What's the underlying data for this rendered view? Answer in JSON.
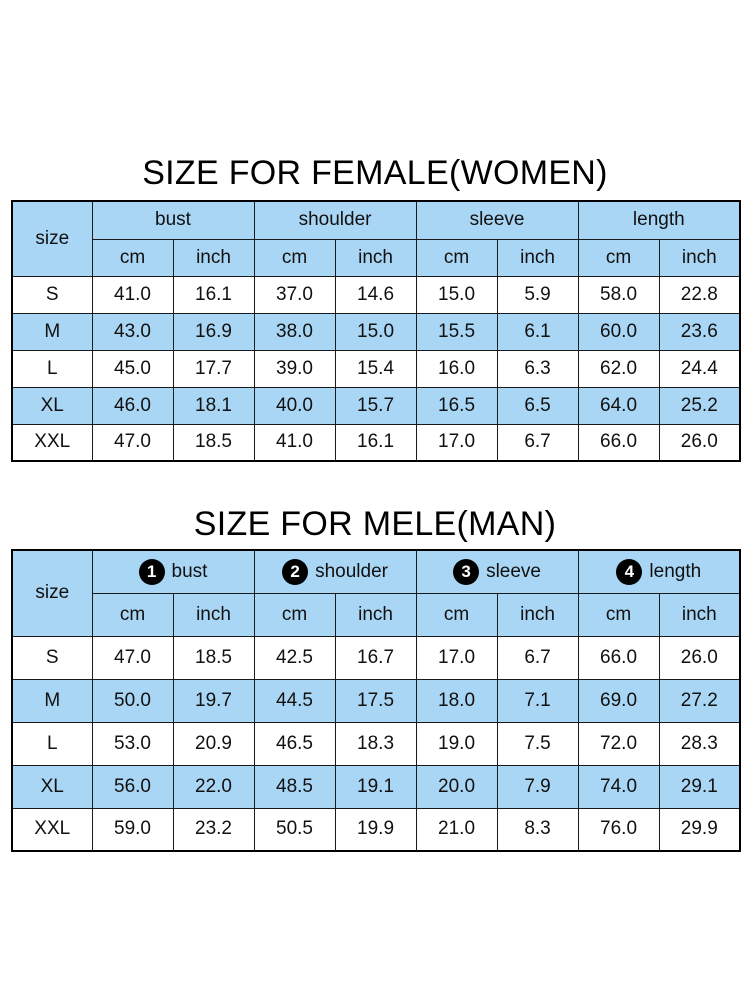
{
  "women": {
    "title": "SIZE FOR FEMALE(WOMEN)",
    "size_label": "size",
    "groups": [
      {
        "label": "bust"
      },
      {
        "label": "shoulder"
      },
      {
        "label": "sleeve"
      },
      {
        "label": "length"
      }
    ],
    "unit_cm": "cm",
    "unit_inch": "inch",
    "rows": [
      {
        "size": "S",
        "values": [
          "41.0",
          "16.1",
          "37.0",
          "14.6",
          "15.0",
          "5.9",
          "58.0",
          "22.8"
        ]
      },
      {
        "size": "M",
        "values": [
          "43.0",
          "16.9",
          "38.0",
          "15.0",
          "15.5",
          "6.1",
          "60.0",
          "23.6"
        ]
      },
      {
        "size": "L",
        "values": [
          "45.0",
          "17.7",
          "39.0",
          "15.4",
          "16.0",
          "6.3",
          "62.0",
          "24.4"
        ]
      },
      {
        "size": "XL",
        "values": [
          "46.0",
          "18.1",
          "40.0",
          "15.7",
          "16.5",
          "6.5",
          "64.0",
          "25.2"
        ]
      },
      {
        "size": "XXL",
        "values": [
          "47.0",
          "18.5",
          "41.0",
          "16.1",
          "17.0",
          "6.7",
          "66.0",
          "26.0"
        ]
      }
    ]
  },
  "men": {
    "title": "SIZE FOR MELE(MAN)",
    "size_label": "size",
    "groups": [
      {
        "badge": "1",
        "label": "bust"
      },
      {
        "badge": "2",
        "label": "shoulder"
      },
      {
        "badge": "3",
        "label": "sleeve"
      },
      {
        "badge": "4",
        "label": "length"
      }
    ],
    "unit_cm": "cm",
    "unit_inch": "inch",
    "rows": [
      {
        "size": "S",
        "values": [
          "47.0",
          "18.5",
          "42.5",
          "16.7",
          "17.0",
          "6.7",
          "66.0",
          "26.0"
        ]
      },
      {
        "size": "M",
        "values": [
          "50.0",
          "19.7",
          "44.5",
          "17.5",
          "18.0",
          "7.1",
          "69.0",
          "27.2"
        ]
      },
      {
        "size": "L",
        "values": [
          "53.0",
          "20.9",
          "46.5",
          "18.3",
          "19.0",
          "7.5",
          "72.0",
          "28.3"
        ]
      },
      {
        "size": "XL",
        "values": [
          "56.0",
          "22.0",
          "48.5",
          "19.1",
          "20.0",
          "7.9",
          "74.0",
          "29.1"
        ]
      },
      {
        "size": "XXL",
        "values": [
          "59.0",
          "23.2",
          "50.5",
          "19.9",
          "21.0",
          "8.3",
          "76.0",
          "29.9"
        ]
      }
    ]
  },
  "colors": {
    "header_blue": "#a9d6f5",
    "border": "#1a1a1a",
    "badge": "#000000"
  }
}
